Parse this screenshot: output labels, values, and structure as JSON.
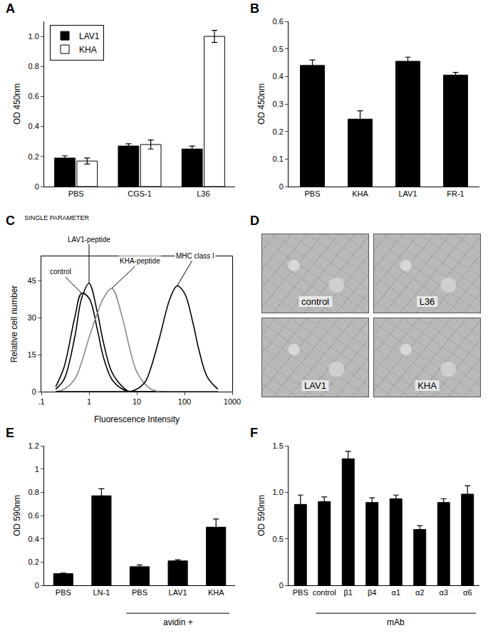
{
  "chart_data": [
    {
      "panel": "A",
      "type": "bar",
      "y_label": "OD 450nm",
      "categories": [
        "PBS",
        "CGS-1",
        "L36"
      ],
      "series": [
        {
          "name": "LAV1",
          "color": "#000000",
          "values": [
            0.19,
            0.27,
            0.25
          ],
          "errors": [
            0.015,
            0.015,
            0.02
          ]
        },
        {
          "name": "KHA",
          "color": "#ffffff",
          "values": [
            0.17,
            0.28,
            1.0
          ],
          "errors": [
            0.02,
            0.03,
            0.04
          ]
        }
      ],
      "ylim": [
        0,
        1.1
      ],
      "yticks": [
        0,
        0.2,
        0.4,
        0.6,
        0.8,
        {
          "value": 1,
          "label": "1.0"
        }
      ],
      "legend": "upper left"
    },
    {
      "panel": "B",
      "type": "bar",
      "y_label": "OD 450nm",
      "categories": [
        "PBS",
        "KHA",
        "LAV1",
        "FR-1"
      ],
      "values": [
        0.44,
        0.245,
        0.455,
        0.405
      ],
      "errors": [
        0.02,
        0.03,
        0.015,
        0.01
      ],
      "color": "#000000",
      "ylim": [
        0,
        0.6
      ],
      "yticks": [
        0,
        0.1,
        0.2,
        0.3,
        0.4,
        0.5,
        0.6
      ]
    },
    {
      "panel": "C",
      "type": "line",
      "title": "SINGLE PARAMETER",
      "x_label": "Fluorescence Intensity",
      "y_label": "Relative cell number",
      "x": [
        0.2,
        0.3,
        0.5,
        0.7,
        1,
        1.5,
        2,
        3,
        5,
        7,
        10,
        15,
        20,
        30,
        50,
        70,
        100,
        150,
        200,
        300,
        500
      ],
      "series": [
        {
          "name": "control",
          "color": "#000000",
          "values": [
            2,
            10,
            30,
            40,
            38,
            25,
            14,
            5,
            1,
            0,
            0,
            0,
            0,
            0,
            0,
            0,
            0,
            0,
            0,
            0,
            0
          ]
        },
        {
          "name": "LAV1-peptide",
          "color": "#000000",
          "values": [
            1,
            5,
            22,
            38,
            44,
            32,
            20,
            8,
            2,
            0,
            0,
            0,
            0,
            0,
            0,
            0,
            0,
            0,
            0,
            0,
            0
          ]
        },
        {
          "name": "KHA-peptide",
          "color": "#8a8a8a",
          "values": [
            0,
            1,
            5,
            12,
            22,
            32,
            38,
            42,
            30,
            18,
            8,
            3,
            1,
            0,
            0,
            0,
            0,
            0,
            0,
            0,
            0
          ]
        },
        {
          "name": "MHC class I",
          "color": "#000000",
          "values": [
            0,
            0,
            0,
            0,
            0,
            0,
            0,
            0,
            0,
            0,
            1,
            4,
            10,
            22,
            38,
            43,
            40,
            28,
            17,
            6,
            1
          ]
        }
      ],
      "log": "x",
      "xlim": [
        0.1,
        1000
      ],
      "xticks": [
        {
          "value": 0.1,
          "label": ".1"
        },
        1,
        10,
        100,
        1000
      ],
      "ylim": [
        0,
        55
      ],
      "yticks": [
        0,
        15,
        30,
        45
      ]
    },
    {
      "panel": "D",
      "type": "image",
      "images": [
        "control",
        "L36",
        "LAV1",
        "KHA"
      ]
    },
    {
      "panel": "E",
      "type": "bar",
      "y_label": "OD 590nm",
      "categories": [
        "PBS",
        "LN-1",
        "PBS",
        "LAV1",
        "KHA"
      ],
      "values": [
        0.1,
        0.77,
        0.16,
        0.21,
        0.5
      ],
      "errors": [
        0.005,
        0.06,
        0.015,
        0.01,
        0.07
      ],
      "color": "#000000",
      "ylim": [
        0,
        1.2
      ],
      "yticks": [
        0,
        0.2,
        0.4,
        0.6,
        0.8,
        1,
        1.2
      ],
      "annotations": [
        {
          "text": "avidin +",
          "from": 2,
          "to": 4
        }
      ]
    },
    {
      "panel": "F",
      "type": "bar",
      "y_label": "OD 590nm",
      "categories": [
        "PBS",
        "control",
        "β1",
        "β4",
        "α1",
        "α2",
        "α3",
        "α6"
      ],
      "values": [
        0.87,
        0.9,
        1.36,
        0.89,
        0.93,
        0.6,
        0.89,
        0.98
      ],
      "errors": [
        0.1,
        0.05,
        0.08,
        0.05,
        0.04,
        0.04,
        0.04,
        0.09
      ],
      "color": "#000000",
      "ylim": [
        0,
        1.5
      ],
      "yticks": [
        0,
        0.5,
        {
          "value": 1,
          "label": "1.0"
        },
        1.5
      ],
      "annotations": [
        {
          "text": "mAb",
          "from": 1,
          "to": 7
        }
      ]
    }
  ]
}
